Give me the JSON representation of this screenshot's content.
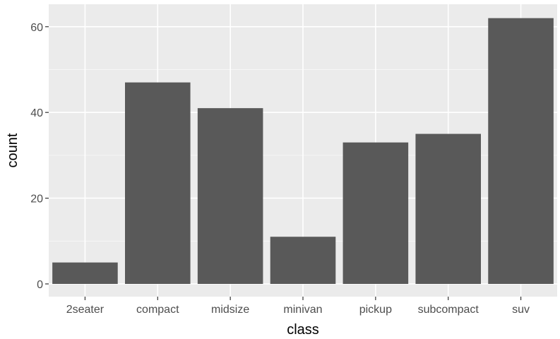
{
  "chart_data": {
    "type": "bar",
    "categories": [
      "2seater",
      "compact",
      "midsize",
      "minivan",
      "pickup",
      "subcompact",
      "suv"
    ],
    "values": [
      5,
      47,
      41,
      11,
      33,
      35,
      62
    ],
    "xlabel": "class",
    "ylabel": "count",
    "ylim": [
      0,
      65
    ],
    "yticks": [
      0,
      20,
      40,
      60
    ],
    "grid": true,
    "colors": {
      "panel_background": "#ebebeb",
      "grid": "#ffffff",
      "bar": "#595959",
      "tick": "#333333"
    }
  }
}
